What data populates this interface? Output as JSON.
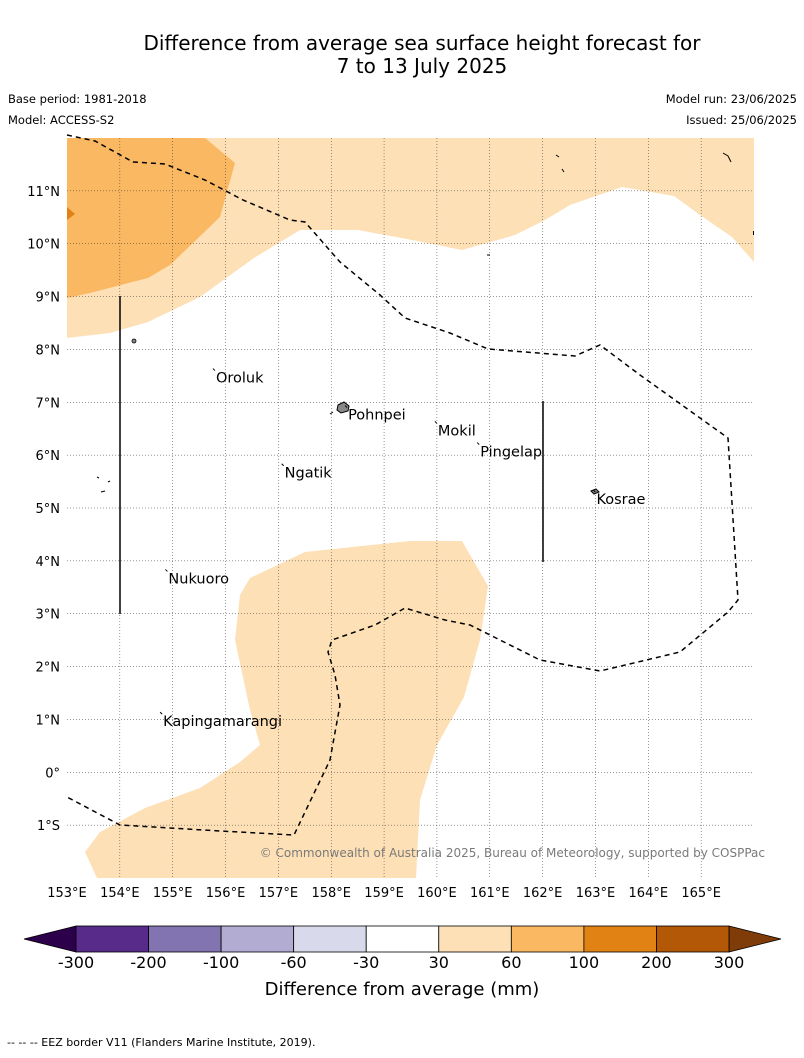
{
  "title": {
    "line1": "Difference from average sea surface height forecast for",
    "line2": "7 to 13 July 2025"
  },
  "meta": {
    "base_period": "Base period: 1981-2018",
    "model": "Model: ACCESS-S2",
    "model_run": "Model run: 23/06/2025",
    "issued": "Issued: 25/06/2025"
  },
  "map": {
    "lon_range": [
      153,
      166
    ],
    "lat_range": [
      -2,
      12
    ],
    "lon_ticks": [
      "153°E",
      "154°E",
      "155°E",
      "156°E",
      "157°E",
      "158°E",
      "159°E",
      "160°E",
      "161°E",
      "162°E",
      "163°E",
      "164°E",
      "165°E"
    ],
    "lat_ticks": [
      "11°N",
      "10°N",
      "9°N",
      "8°N",
      "7°N",
      "6°N",
      "5°N",
      "4°N",
      "3°N",
      "2°N",
      "1°N",
      "0°",
      "1°S"
    ],
    "places": [
      {
        "name": "Oroluk",
        "lon": 155.8,
        "lat": 7.6
      },
      {
        "name": "Pohnpei",
        "lon": 158.3,
        "lat": 6.9
      },
      {
        "name": "Mokil",
        "lon": 160.0,
        "lat": 6.6
      },
      {
        "name": "Pingelap",
        "lon": 160.8,
        "lat": 6.2
      },
      {
        "name": "Ngatik",
        "lon": 157.1,
        "lat": 5.8
      },
      {
        "name": "Kosrae",
        "lon": 163.0,
        "lat": 5.3
      },
      {
        "name": "Nukuoro",
        "lon": 154.9,
        "lat": 3.8
      },
      {
        "name": "Kapingamarangi",
        "lon": 154.8,
        "lat": 1.1
      }
    ],
    "copyright": "© Commonwealth of Australia 2025, Bureau of Meteorology, supported by COSPPac"
  },
  "legend": {
    "title": "Difference from average (mm)",
    "colors": [
      "#582a8a",
      "#8274b0",
      "#b2abd2",
      "#d8daeb",
      "#ffffff",
      "#fde0b6",
      "#fbb862",
      "#e08214",
      "#b35806"
    ],
    "under_color": "#2d004b",
    "over_color": "#7f3b08",
    "labels": [
      "-300",
      "-200",
      "-100",
      "-60",
      "-30",
      "30",
      "60",
      "100",
      "200",
      "300"
    ]
  },
  "footer": "-- -- -- EEZ border V11 (Flanders Marine Institute, 2019)."
}
